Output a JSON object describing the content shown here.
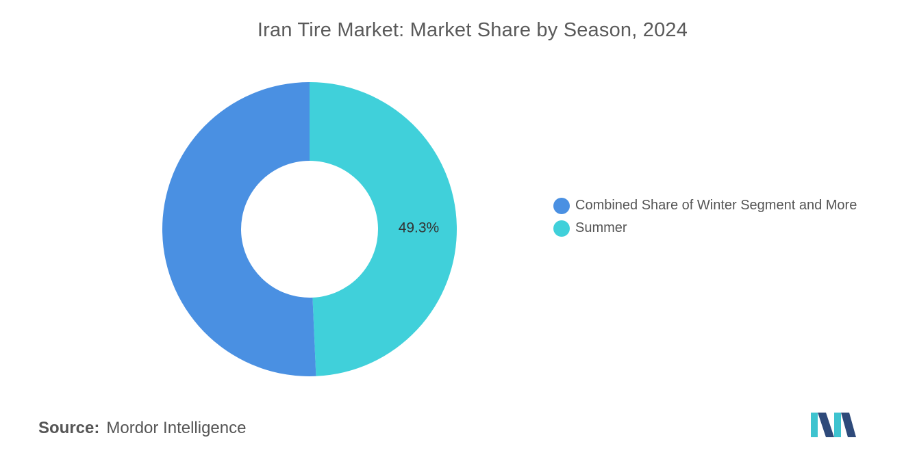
{
  "chart_data": {
    "type": "pie",
    "title": "Iran Tire Market: Market Share by Season, 2024",
    "donut": true,
    "slices": [
      {
        "label": "Combined Share of Winter Segment and More",
        "value": 50.7,
        "color": "#4a90e2",
        "data_label": ""
      },
      {
        "label": "Summer",
        "value": 49.3,
        "color": "#40d0da",
        "data_label": "49.3%"
      }
    ],
    "legend_position": "right"
  },
  "footer": {
    "source_label": "Source:",
    "source_value": "Mordor Intelligence"
  },
  "colors": {
    "logo_dark": "#2e4a7a",
    "logo_light": "#3ec3cf"
  },
  "icons": {
    "logo": "mordor-intelligence-logo-icon"
  }
}
